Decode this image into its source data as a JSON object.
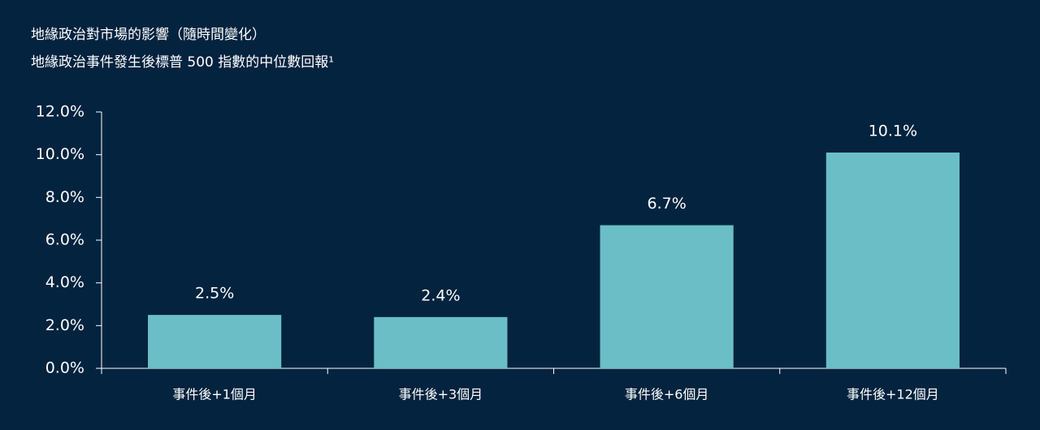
{
  "chart_data": {
    "type": "bar",
    "title": "地緣政治對市場的影響（隨時間變化）",
    "subtitle": "地緣政治事件發生後標普 500 指數的中位數回報¹",
    "categories": [
      "事件後+1個月",
      "事件後+3個月",
      "事件後+6個月",
      "事件後+12個月"
    ],
    "values": [
      2.5,
      2.4,
      6.7,
      10.1
    ],
    "value_labels": [
      "2.5%",
      "2.4%",
      "6.7%",
      "10.1%"
    ],
    "color": "#6bbec6",
    "ylim": [
      0,
      12
    ],
    "yticks": [
      {
        "value": 0,
        "label": "0.0%"
      },
      {
        "value": 2,
        "label": "2.0%"
      },
      {
        "value": 4,
        "label": "4.0%"
      },
      {
        "value": 6,
        "label": "6.0%"
      },
      {
        "value": 8,
        "label": "8.0%"
      },
      {
        "value": 10,
        "label": "10.0%"
      },
      {
        "value": 12,
        "label": "12.0%"
      }
    ],
    "grid": false
  }
}
